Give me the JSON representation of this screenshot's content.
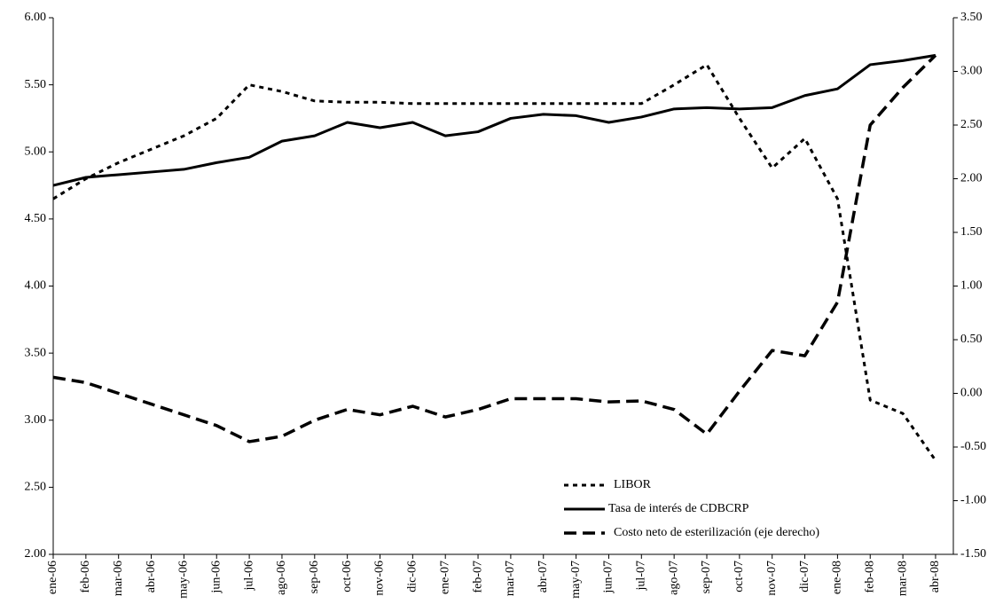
{
  "chart_data": {
    "type": "line",
    "categories": [
      "ene-06",
      "feb-06",
      "mar-06",
      "abr-06",
      "may-06",
      "jun-06",
      "jul-06",
      "ago-06",
      "sep-06",
      "oct-06",
      "nov-06",
      "dic-06",
      "ene-07",
      "feb-07",
      "mar-07",
      "abr-07",
      "may-07",
      "jun-07",
      "jul-07",
      "ago-07",
      "sep-07",
      "oct-07",
      "nov-07",
      "dic-07",
      "ene-08",
      "feb-08",
      "mar-08",
      "abr-08"
    ],
    "series": [
      {
        "name": "LIBOR",
        "color": "#000000",
        "style": "dotted",
        "values": [
          4.65,
          4.8,
          4.92,
          5.02,
          5.12,
          5.25,
          5.5,
          5.45,
          5.38,
          5.37,
          5.37,
          5.36,
          5.36,
          5.36,
          5.36,
          5.36,
          5.36,
          5.36,
          5.36,
          5.5,
          5.65,
          5.25,
          4.88,
          5.1,
          4.65,
          3.15,
          3.05,
          2.7
        ]
      },
      {
        "name": "Tasa de interés de CDBCRP",
        "color": "#000000",
        "style": "solid",
        "values": [
          4.75,
          4.81,
          4.83,
          4.85,
          4.87,
          4.92,
          4.96,
          5.08,
          5.12,
          5.22,
          5.18,
          5.22,
          5.12,
          5.15,
          5.25,
          5.28,
          5.27,
          5.22,
          5.26,
          5.32,
          5.33,
          5.32,
          5.33,
          5.42,
          5.47,
          5.65,
          5.68,
          5.72
        ]
      },
      {
        "name": "Costo neto de esterilización (eje derecho)",
        "color": "#000000",
        "style": "dashed",
        "axis": "y2",
        "values": [
          0.15,
          0.1,
          0.0,
          -0.1,
          -0.2,
          -0.3,
          -0.45,
          -0.4,
          -0.25,
          -0.15,
          -0.2,
          -0.12,
          -0.22,
          -0.15,
          -0.05,
          -0.05,
          -0.05,
          -0.08,
          -0.07,
          -0.15,
          -0.38,
          0.02,
          0.4,
          0.35,
          0.85,
          2.5,
          2.85,
          3.15
        ]
      }
    ],
    "ylim": [
      2,
      6
    ],
    "yticks": [
      {
        "value": 2,
        "label": "2.00"
      },
      {
        "value": 2.5,
        "label": "2.50"
      },
      {
        "value": 3,
        "label": "3.00"
      },
      {
        "value": 3.5,
        "label": "3.50"
      },
      {
        "value": 4,
        "label": "4.00"
      },
      {
        "value": 4.5,
        "label": "4.50"
      },
      {
        "value": 5,
        "label": "5.00"
      },
      {
        "value": 5.5,
        "label": "5.50"
      },
      {
        "value": 6,
        "label": "6.00"
      }
    ],
    "y2lim": [
      -1.5,
      3.5
    ],
    "y2ticks": [
      {
        "value": -1.5,
        "label": "-1.50"
      },
      {
        "value": -1,
        "label": "-1.00"
      },
      {
        "value": -0.5,
        "label": "-0.50"
      },
      {
        "value": 0,
        "label": "0.00"
      },
      {
        "value": 0.5,
        "label": "0.50"
      },
      {
        "value": 1,
        "label": "1.00"
      },
      {
        "value": 1.5,
        "label": "1.50"
      },
      {
        "value": 2,
        "label": "2.00"
      },
      {
        "value": 2.5,
        "label": "2.50"
      },
      {
        "value": 3,
        "label": "3.00"
      },
      {
        "value": 3.5,
        "label": "3.50"
      }
    ],
    "legend": "lower right"
  }
}
